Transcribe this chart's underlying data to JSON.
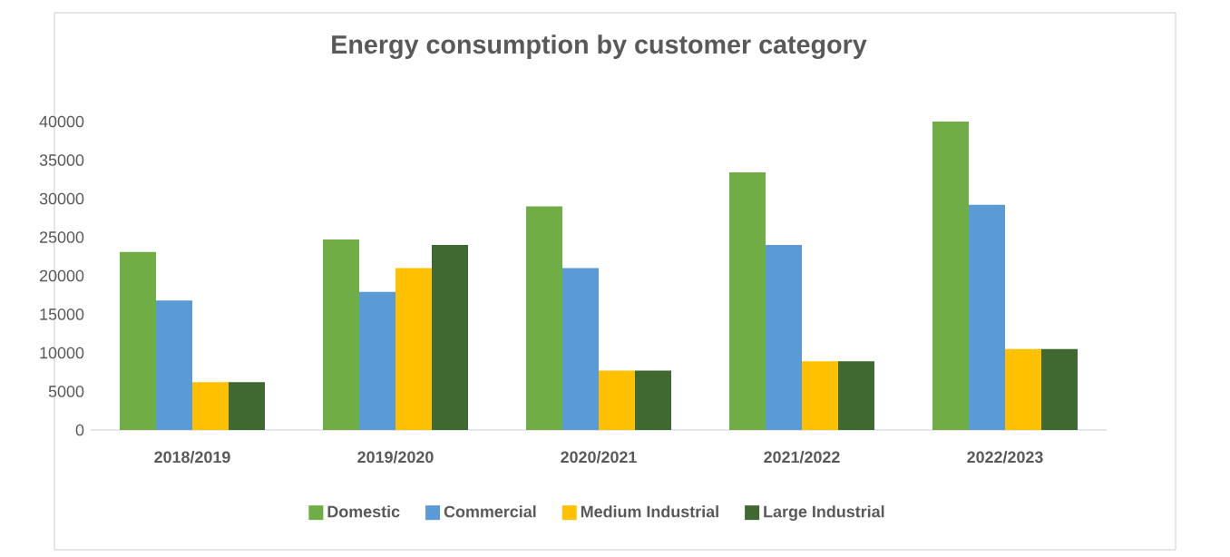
{
  "chart_data": {
    "type": "bar",
    "title": "Energy consumption by customer category",
    "categories": [
      "2018/2019",
      "2019/2020",
      "2020/2021",
      "2021/2022",
      "2022/2023"
    ],
    "series": [
      {
        "name": "Domestic",
        "color": "#70ad47",
        "values": [
          23100,
          24700,
          29000,
          33400,
          40000
        ]
      },
      {
        "name": "Commercial",
        "color": "#5b9bd5",
        "values": [
          16800,
          17900,
          21000,
          24000,
          29200
        ]
      },
      {
        "name": "Medium Industrial",
        "color": "#ffc000",
        "values": [
          6200,
          21000,
          7700,
          8900,
          10500
        ]
      },
      {
        "name": "Large Industrial",
        "color": "#3f6930",
        "values": [
          6200,
          24000,
          7700,
          8900,
          10500
        ]
      }
    ],
    "ylim": [
      0,
      40000
    ],
    "yticks": [
      0,
      5000,
      10000,
      15000,
      20000,
      25000,
      30000,
      35000,
      40000
    ],
    "grid": false,
    "legend": "bottom"
  }
}
